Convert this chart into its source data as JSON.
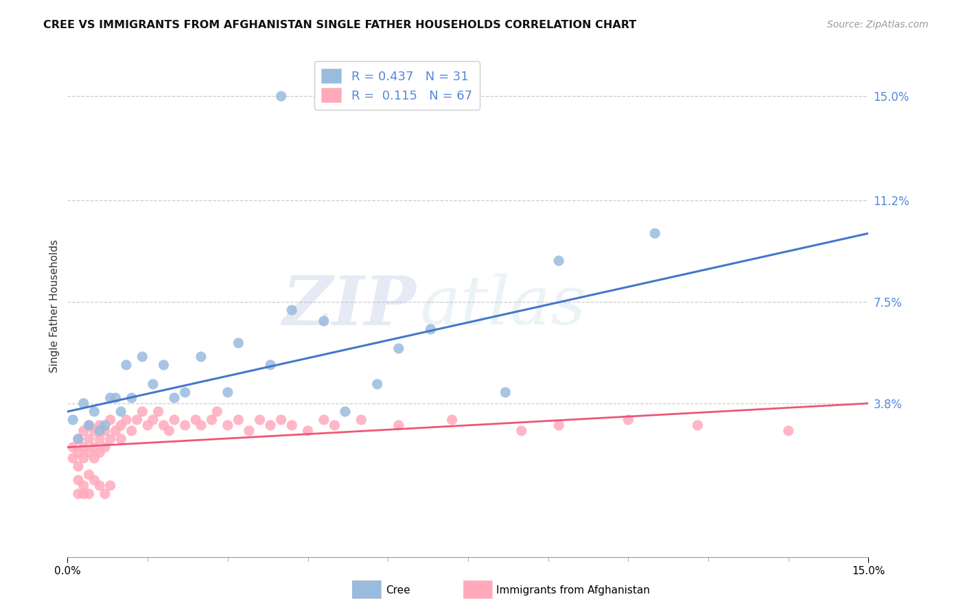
{
  "title": "CREE VS IMMIGRANTS FROM AFGHANISTAN SINGLE FATHER HOUSEHOLDS CORRELATION CHART",
  "source": "Source: ZipAtlas.com",
  "ylabel": "Single Father Households",
  "xlim": [
    0.0,
    0.15
  ],
  "ylim": [
    -0.018,
    0.165
  ],
  "ytick_values": [
    0.038,
    0.075,
    0.112,
    0.15
  ],
  "ytick_labels": [
    "3.8%",
    "7.5%",
    "11.2%",
    "15.0%"
  ],
  "xtick_values": [
    0.0,
    0.15
  ],
  "xtick_labels": [
    "0.0%",
    "15.0%"
  ],
  "legend_cree_R": "0.437",
  "legend_cree_N": "31",
  "legend_afghan_R": "0.115",
  "legend_afghan_N": "67",
  "cree_color": "#99bbdd",
  "afghan_color": "#ffaabb",
  "cree_line_color": "#4477cc",
  "afghan_line_color": "#ee5577",
  "right_tick_color": "#5588dd",
  "watermark_zip": "ZIP",
  "watermark_atlas": "atlas",
  "background_color": "#ffffff",
  "grid_color": "#cccccc",
  "cree_points_x": [
    0.001,
    0.002,
    0.003,
    0.004,
    0.005,
    0.006,
    0.007,
    0.008,
    0.009,
    0.01,
    0.011,
    0.012,
    0.014,
    0.016,
    0.018,
    0.02,
    0.022,
    0.025,
    0.03,
    0.032,
    0.038,
    0.042,
    0.048,
    0.052,
    0.058,
    0.062,
    0.068,
    0.082,
    0.092,
    0.11,
    0.04
  ],
  "cree_points_y": [
    0.032,
    0.025,
    0.038,
    0.03,
    0.035,
    0.028,
    0.03,
    0.04,
    0.04,
    0.035,
    0.052,
    0.04,
    0.055,
    0.045,
    0.052,
    0.04,
    0.042,
    0.055,
    0.042,
    0.06,
    0.052,
    0.072,
    0.068,
    0.035,
    0.045,
    0.058,
    0.065,
    0.042,
    0.09,
    0.1,
    0.15
  ],
  "afghan_points_x": [
    0.001,
    0.001,
    0.002,
    0.002,
    0.002,
    0.003,
    0.003,
    0.003,
    0.004,
    0.004,
    0.004,
    0.005,
    0.005,
    0.005,
    0.006,
    0.006,
    0.006,
    0.007,
    0.007,
    0.008,
    0.008,
    0.009,
    0.01,
    0.01,
    0.011,
    0.012,
    0.013,
    0.014,
    0.015,
    0.016,
    0.017,
    0.018,
    0.019,
    0.02,
    0.022,
    0.024,
    0.025,
    0.027,
    0.028,
    0.03,
    0.032,
    0.034,
    0.036,
    0.038,
    0.04,
    0.042,
    0.045,
    0.048,
    0.05,
    0.055,
    0.002,
    0.003,
    0.004,
    0.005,
    0.006,
    0.007,
    0.008,
    0.002,
    0.003,
    0.004,
    0.062,
    0.072,
    0.085,
    0.092,
    0.105,
    0.118,
    0.135
  ],
  "afghan_points_y": [
    0.018,
    0.022,
    0.015,
    0.02,
    0.025,
    0.018,
    0.022,
    0.028,
    0.02,
    0.025,
    0.03,
    0.018,
    0.022,
    0.028,
    0.02,
    0.025,
    0.03,
    0.022,
    0.028,
    0.025,
    0.032,
    0.028,
    0.03,
    0.025,
    0.032,
    0.028,
    0.032,
    0.035,
    0.03,
    0.032,
    0.035,
    0.03,
    0.028,
    0.032,
    0.03,
    0.032,
    0.03,
    0.032,
    0.035,
    0.03,
    0.032,
    0.028,
    0.032,
    0.03,
    0.032,
    0.03,
    0.028,
    0.032,
    0.03,
    0.032,
    0.01,
    0.008,
    0.012,
    0.01,
    0.008,
    0.005,
    0.008,
    0.005,
    0.005,
    0.005,
    0.03,
    0.032,
    0.028,
    0.03,
    0.032,
    0.03,
    0.028
  ]
}
